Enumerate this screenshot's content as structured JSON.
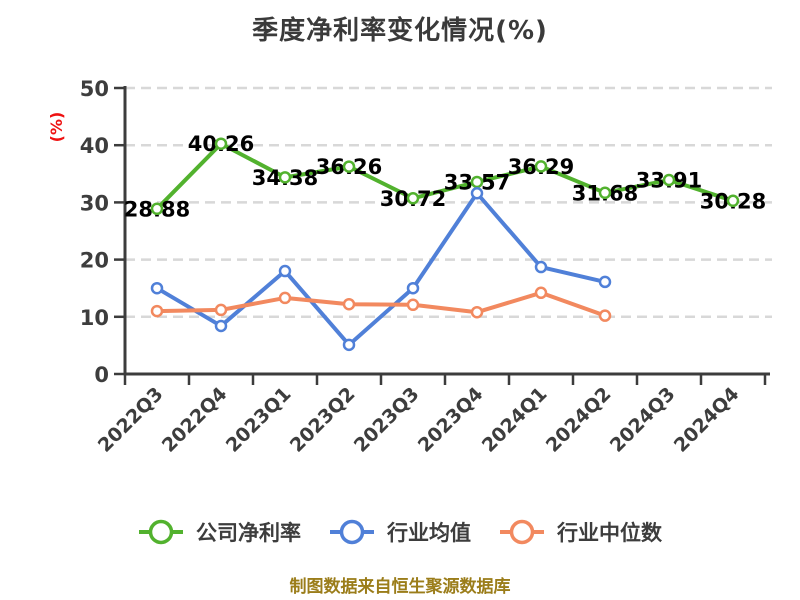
{
  "title": "季度净利率变化情况(%)",
  "footer": "制图数据来自恒生聚源数据库",
  "colors": {
    "title_text": "#3a3a3a",
    "axis": "#3c3c3c",
    "grid": "#d8d8d8",
    "tick_label": "#3d3d3d",
    "data_label": "#000000",
    "ylabel_red": "#ee1111",
    "footer_gold": "#9b7d1a",
    "marker_fill": "#ffffff",
    "series_green": "#52b22e",
    "series_blue": "#5080d8",
    "series_orange": "#f2895f"
  },
  "chart_data": {
    "type": "line",
    "title": "季度净利率变化情况(%)",
    "xlabel": "",
    "ylabel": "(%)",
    "ylim": [
      0,
      50
    ],
    "yticks": [
      0,
      10,
      20,
      30,
      40,
      50
    ],
    "grid": true,
    "grid_style": "dashed",
    "legend_position": "bottom",
    "categories": [
      "2022Q3",
      "2022Q4",
      "2023Q1",
      "2023Q2",
      "2023Q3",
      "2023Q4",
      "2024Q1",
      "2024Q2",
      "2024Q3",
      "2024Q4"
    ],
    "series": [
      {
        "id": "company-net-margin",
        "name": "公司净利率",
        "color": "#52b22e",
        "data_labels": true,
        "values": [
          28.88,
          40.26,
          34.38,
          36.26,
          30.72,
          33.57,
          36.29,
          31.68,
          33.91,
          30.28
        ]
      },
      {
        "id": "industry-average",
        "name": "行业均值",
        "color": "#5080d8",
        "data_labels": false,
        "values": [
          15.0,
          8.4,
          18.0,
          5.1,
          15.0,
          31.6,
          18.7,
          16.1,
          null,
          null
        ]
      },
      {
        "id": "industry-median",
        "name": "行业中位数",
        "color": "#f2895f",
        "data_labels": false,
        "values": [
          11.0,
          11.2,
          13.3,
          12.2,
          12.1,
          10.8,
          14.2,
          10.2,
          null,
          null
        ]
      }
    ]
  }
}
